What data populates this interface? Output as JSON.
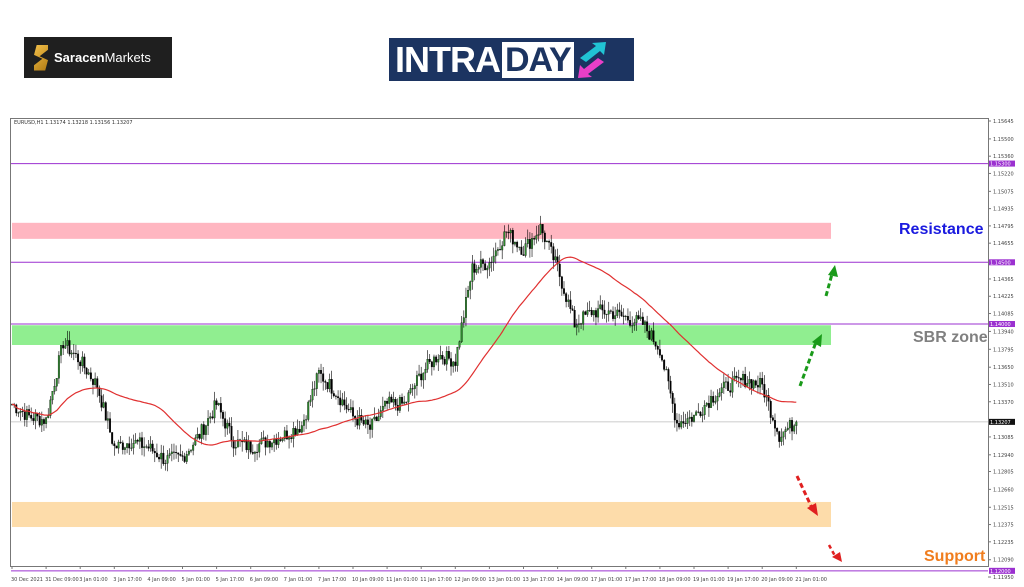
{
  "logos": {
    "saracen": {
      "bold": "Saracen",
      "light": "Markets"
    },
    "intraday": {
      "part1": "INTRA",
      "part2": "DAY"
    }
  },
  "chart_header": "EURUSD,H1  1.13174 1.13218 1.13156 1.13207",
  "annotations": {
    "resistance": {
      "label": "Resistance",
      "color": "#1a1adf"
    },
    "sbr": {
      "label": "SBR zone",
      "color": "#808080"
    },
    "support": {
      "label": "Support",
      "color": "#f07d1e"
    }
  },
  "chart_data": {
    "type": "candlestick",
    "symbol": "EURUSD",
    "timeframe": "H1",
    "ylim": [
      1.1195,
      1.15645
    ],
    "y_ticks": [
      "1.15645",
      "1.15500",
      "1.15360",
      "1.15220",
      "1.15075",
      "1.14935",
      "1.14795",
      "1.14655",
      "1.14365",
      "1.14225",
      "1.14085",
      "1.13940",
      "1.13795",
      "1.13650",
      "1.13510",
      "1.13370",
      "1.13085",
      "1.12940",
      "1.12805",
      "1.12660",
      "1.12515",
      "1.12375",
      "1.12235",
      "1.12090",
      "1.11950"
    ],
    "x_ticks": [
      "30 Dec 2021",
      "31 Dec 09:00",
      "3 Jan 01:00",
      "3 Jan 17:00",
      "4 Jan 09:00",
      "5 Jan 01:00",
      "5 Jan 17:00",
      "6 Jan 09:00",
      "7 Jan 01:00",
      "7 Jan 17:00",
      "10 Jan 09:00",
      "11 Jan 01:00",
      "11 Jan 17:00",
      "12 Jan 09:00",
      "13 Jan 01:00",
      "13 Jan 17:00",
      "14 Jan 09:00",
      "17 Jan 01:00",
      "17 Jan 17:00",
      "18 Jan 09:00",
      "19 Jan 01:00",
      "19 Jan 17:00",
      "20 Jan 09:00",
      "21 Jan 01:00"
    ],
    "close_every_8_bars": [
      1.1335,
      1.1325,
      1.1322,
      1.1385,
      1.137,
      1.135,
      1.13,
      1.1305,
      1.13,
      1.129,
      1.1292,
      1.131,
      1.1335,
      1.1305,
      1.13,
      1.1305,
      1.131,
      1.1318,
      1.136,
      1.1345,
      1.1325,
      1.1315,
      1.1335,
      1.1335,
      1.136,
      1.1375,
      1.137,
      1.1445,
      1.145,
      1.1475,
      1.146,
      1.1478,
      1.1445,
      1.14,
      1.141,
      1.141,
      1.1405,
      1.14,
      1.138,
      1.132,
      1.1325,
      1.134,
      1.135,
      1.1355,
      1.135,
      1.131,
      1.13207
    ],
    "current_price": {
      "label": "1.13207",
      "value": 1.13207
    },
    "horizontal_lines": [
      {
        "label": "1.15300",
        "value": 1.153,
        "color": "#9b30d0"
      },
      {
        "label": "1.14500",
        "value": 1.145,
        "color": "#9b30d0"
      },
      {
        "label": "1.14000",
        "value": 1.14,
        "color": "#9b30d0"
      },
      {
        "label": "1.12000",
        "value": 1.12,
        "color": "#9b30d0"
      }
    ],
    "zones": [
      {
        "name": "resistance",
        "from": 1.1469,
        "to": 1.1482,
        "color": "#ffb6c1"
      },
      {
        "name": "sbr",
        "from": 1.1383,
        "to": 1.1399,
        "color": "#90ee90"
      },
      {
        "name": "support",
        "from": 1.12355,
        "to": 1.12558,
        "color": "#fddcaa"
      }
    ],
    "moving_average": {
      "color": "#e03030",
      "period": 50
    },
    "grid": false
  }
}
